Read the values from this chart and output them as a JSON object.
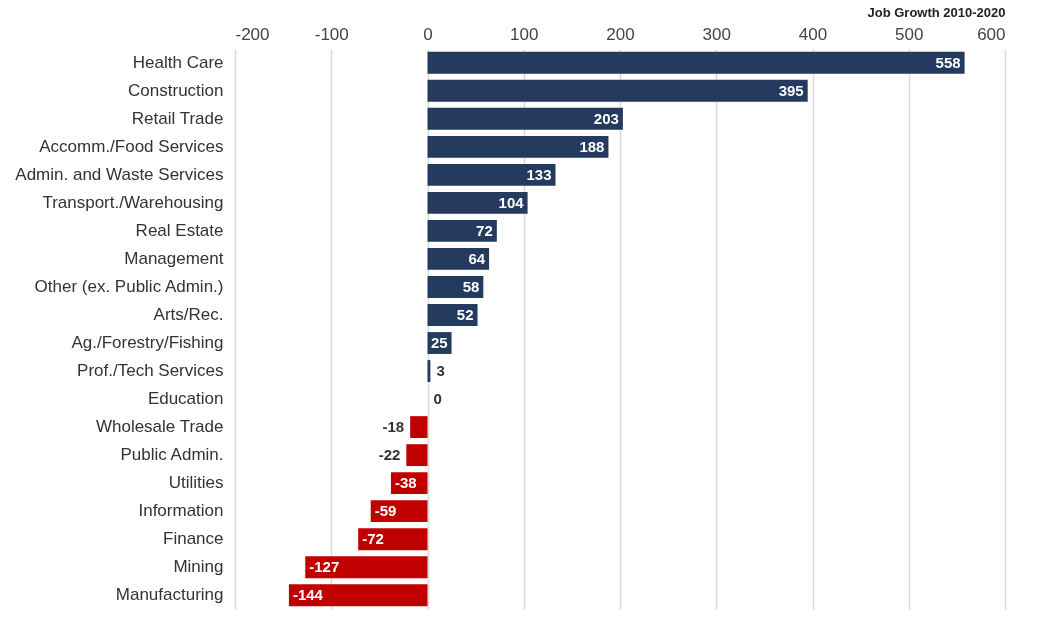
{
  "chart_data": {
    "type": "bar",
    "orientation": "horizontal",
    "xlabel": "Job Growth 2010-2020",
    "categories": [
      "Health Care",
      "Construction",
      "Retail Trade",
      "Accomm./Food Services",
      "Admin. and Waste Services",
      "Transport./Warehousing",
      "Real Estate",
      "Management",
      "Other (ex. Public Admin.)",
      "Arts/Rec.",
      "Ag./Forestry/Fishing",
      "Prof./Tech Services",
      "Education",
      "Wholesale Trade",
      "Public Admin.",
      "Utilities",
      "Information",
      "Finance",
      "Mining",
      "Manufacturing"
    ],
    "values": [
      558,
      395,
      203,
      188,
      133,
      104,
      72,
      64,
      58,
      52,
      25,
      3,
      0,
      -18,
      -22,
      -38,
      -59,
      -72,
      -127,
      -144
    ],
    "colors": [
      "#243a5e",
      "#243a5e",
      "#243a5e",
      "#243a5e",
      "#243a5e",
      "#243a5e",
      "#243a5e",
      "#243a5e",
      "#243a5e",
      "#243a5e",
      "#243a5e",
      "#243a5e",
      "#243a5e",
      "#c00000",
      "#c00000",
      "#c00000",
      "#c00000",
      "#c00000",
      "#c00000",
      "#c00000"
    ],
    "xlim": [
      -200,
      600
    ],
    "xticks": [
      -200,
      -100,
      0,
      100,
      200,
      300,
      400,
      500,
      600
    ],
    "grid": "x",
    "data_labels": true
  }
}
